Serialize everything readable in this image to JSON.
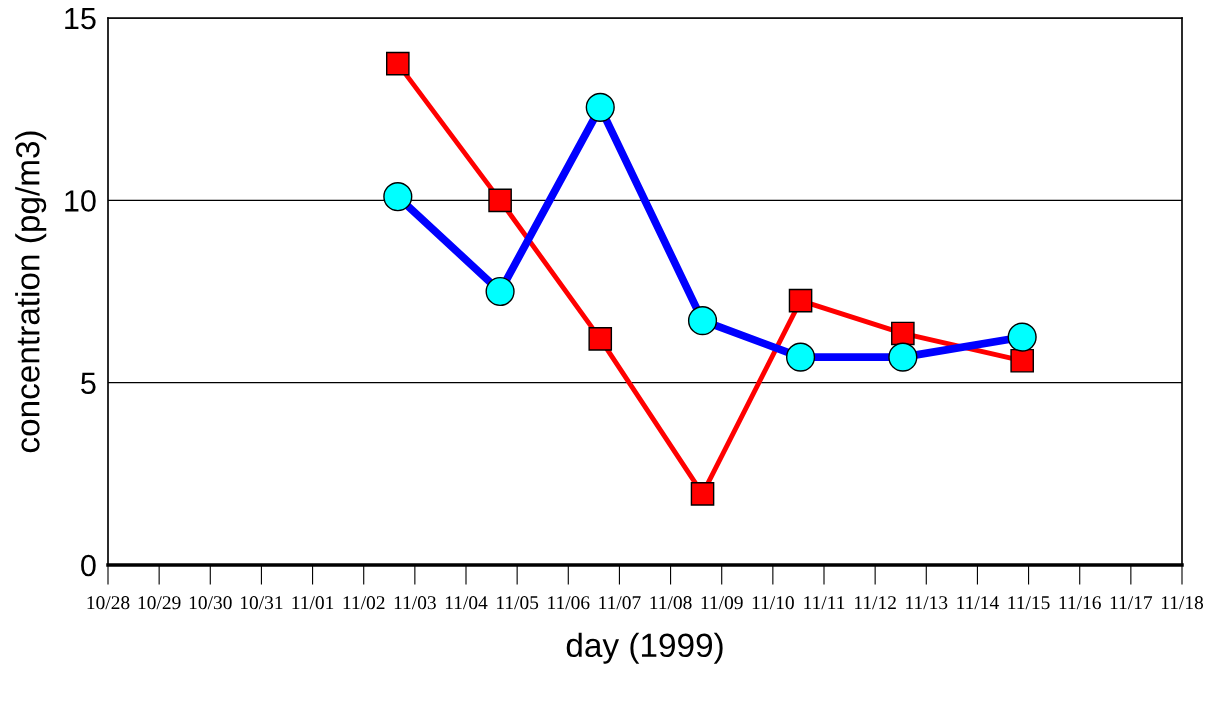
{
  "chart_data": {
    "type": "line",
    "xlabel": "day (1999)",
    "ylabel": "concentration (pg/m3)",
    "x": [
      "1999-11-02T16:00",
      "1999-11-04T16:00",
      "1999-11-06T15:00",
      "1999-11-08T15:00",
      "1999-11-10T13:00",
      "1999-11-12T13:00",
      "1999-11-14T21:00"
    ],
    "series": [
      {
        "color": "#ff0000",
        "marker": "square",
        "colors": [
          "#ff0000",
          "#ff0000",
          "#ff0000",
          "#ff0000",
          "#ff0000",
          "#ff0000",
          "#ff0000"
        ],
        "values": [
          13.75,
          10.0,
          6.2,
          1.95,
          7.25,
          6.35,
          5.6
        ]
      },
      {
        "color": "#0000ff",
        "marker": "circle",
        "colors": [
          "#00ffff",
          "#00ffff",
          "#00ffff",
          "#00ffff",
          "#00ffff",
          "#00ffff",
          "#00ffff"
        ],
        "values": [
          10.1,
          7.5,
          12.55,
          6.7,
          5.7,
          5.7,
          6.25
        ]
      }
    ],
    "xlim": [
      "1999-10-28",
      "1999-11-18"
    ],
    "xticks": [
      {
        "value": "1999-10-28",
        "label": "10/28"
      },
      {
        "value": "1999-10-29",
        "label": "10/29"
      },
      {
        "value": "1999-10-30",
        "label": "10/30"
      },
      {
        "value": "1999-10-31",
        "label": "10/31"
      },
      {
        "value": "1999-11-01",
        "label": "11/01"
      },
      {
        "value": "1999-11-02",
        "label": "11/02"
      },
      {
        "value": "1999-11-03",
        "label": "11/03"
      },
      {
        "value": "1999-11-04",
        "label": "11/04"
      },
      {
        "value": "1999-11-05",
        "label": "11/05"
      },
      {
        "value": "1999-11-06",
        "label": "11/06"
      },
      {
        "value": "1999-11-07",
        "label": "11/07"
      },
      {
        "value": "1999-11-08",
        "label": "11/08"
      },
      {
        "value": "1999-11-09",
        "label": "11/09"
      },
      {
        "value": "1999-11-10",
        "label": "11/10"
      },
      {
        "value": "1999-11-11",
        "label": "11/11"
      },
      {
        "value": "1999-11-12",
        "label": "11/12"
      },
      {
        "value": "1999-11-13",
        "label": "11/13"
      },
      {
        "value": "1999-11-14",
        "label": "11/14"
      },
      {
        "value": "1999-11-15",
        "label": "11/15"
      },
      {
        "value": "1999-11-16",
        "label": "11/16"
      },
      {
        "value": "1999-11-17",
        "label": "11/17"
      },
      {
        "value": "1999-11-18",
        "label": "11/18"
      }
    ],
    "ylim": [
      0,
      15
    ],
    "yticks": [
      0,
      5,
      10,
      15
    ],
    "grid": "y"
  }
}
